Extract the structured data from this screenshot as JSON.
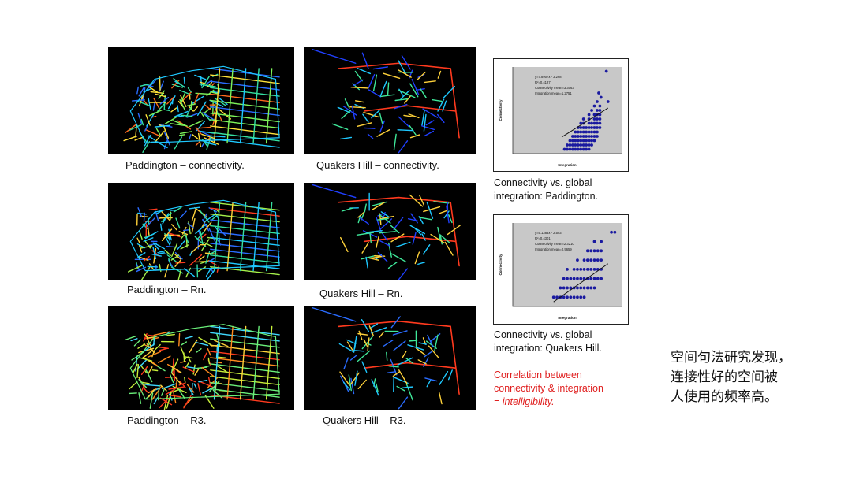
{
  "maps": [
    {
      "id": "pad-conn",
      "caption": "Paddington – connectivity.",
      "palette": [
        "#2a6cff",
        "#1ec8ff",
        "#35e0a0",
        "#7df35a",
        "#ffe23a",
        "#ff6a1e"
      ]
    },
    {
      "id": "qh-conn",
      "caption": "Quakers Hill – connectivity.",
      "palette": [
        "#2040ff",
        "#1ec8ff",
        "#3fe89a",
        "#ffd23a",
        "#ff3a1e"
      ]
    },
    {
      "id": "pad-rn",
      "caption": "Paddington – Rn.",
      "palette": [
        "#2a6cff",
        "#1ec8ff",
        "#35e0a0",
        "#a5f04a",
        "#ffd23a",
        "#ff3a1e"
      ]
    },
    {
      "id": "qh-rn",
      "caption": "Quakers Hill – Rn.",
      "palette": [
        "#2040ff",
        "#1ec8ff",
        "#3fe89a",
        "#ffd23a",
        "#ff3a1e"
      ]
    },
    {
      "id": "pad-r3",
      "caption": "Paddington – R3.",
      "palette": [
        "#40d8ff",
        "#6af07a",
        "#c8f03a",
        "#ffd23a",
        "#ff8a1e",
        "#ff3a1e"
      ]
    },
    {
      "id": "qh-r3",
      "caption": "Quakers Hill – R3.",
      "palette": [
        "#2a6cff",
        "#1ec8ff",
        "#3fe89a",
        "#ffd23a",
        "#ff3a1e"
      ]
    }
  ],
  "scatter_captions": {
    "paddington": [
      "Connectivity vs. global",
      "integration: Paddington."
    ],
    "quakers": [
      "Connectivity vs. global",
      "integration: Quakers Hill."
    ]
  },
  "correlation_note": [
    "Correlation between",
    "connectivity & integration",
    "= intelligibility."
  ],
  "side_note": [
    "空间句法研究发现，",
    "连接性好的空间被",
    "人使用的频率高。"
  ],
  "colors": {
    "point": "#1a1aa0",
    "plot_bg": "#c8c8c8",
    "red": "#e02020"
  },
  "chart_data": [
    {
      "type": "scatter",
      "title": "",
      "xlabel": "Integration",
      "ylabel": "Connectivity",
      "xlim": [
        0,
        2.0
      ],
      "ylim": [
        0,
        20
      ],
      "annotations": [
        "y=7.8907x - 3.268",
        "R²=0.4127",
        "Connectivity mean=3.3063",
        "Integration mean=1.2751"
      ],
      "trend": {
        "slope": 7.89,
        "intercept": -3.27,
        "x": [
          0.9,
          1.75
        ]
      },
      "points": [
        [
          0.95,
          1
        ],
        [
          1.0,
          1
        ],
        [
          1.05,
          1
        ],
        [
          1.1,
          1
        ],
        [
          1.15,
          1
        ],
        [
          1.2,
          1
        ],
        [
          1.25,
          1
        ],
        [
          1.3,
          1
        ],
        [
          1.35,
          1
        ],
        [
          1.4,
          1
        ],
        [
          1.0,
          2
        ],
        [
          1.05,
          2
        ],
        [
          1.1,
          2
        ],
        [
          1.15,
          2
        ],
        [
          1.2,
          2
        ],
        [
          1.25,
          2
        ],
        [
          1.3,
          2
        ],
        [
          1.35,
          2
        ],
        [
          1.4,
          2
        ],
        [
          1.45,
          2
        ],
        [
          1.05,
          3
        ],
        [
          1.1,
          3
        ],
        [
          1.15,
          3
        ],
        [
          1.2,
          3
        ],
        [
          1.25,
          3
        ],
        [
          1.3,
          3
        ],
        [
          1.35,
          3
        ],
        [
          1.4,
          3
        ],
        [
          1.45,
          3
        ],
        [
          1.5,
          3
        ],
        [
          1.1,
          4
        ],
        [
          1.15,
          4
        ],
        [
          1.2,
          4
        ],
        [
          1.25,
          4
        ],
        [
          1.3,
          4
        ],
        [
          1.35,
          4
        ],
        [
          1.4,
          4
        ],
        [
          1.45,
          4
        ],
        [
          1.5,
          4
        ],
        [
          1.55,
          4
        ],
        [
          1.15,
          5
        ],
        [
          1.2,
          5
        ],
        [
          1.25,
          5
        ],
        [
          1.3,
          5
        ],
        [
          1.35,
          5
        ],
        [
          1.4,
          5
        ],
        [
          1.45,
          5
        ],
        [
          1.5,
          5
        ],
        [
          1.55,
          5
        ],
        [
          1.2,
          6
        ],
        [
          1.25,
          6
        ],
        [
          1.3,
          6
        ],
        [
          1.35,
          6
        ],
        [
          1.4,
          6
        ],
        [
          1.45,
          6
        ],
        [
          1.5,
          6
        ],
        [
          1.55,
          6
        ],
        [
          1.6,
          6
        ],
        [
          1.25,
          7
        ],
        [
          1.3,
          7
        ],
        [
          1.4,
          7
        ],
        [
          1.45,
          7
        ],
        [
          1.5,
          7
        ],
        [
          1.55,
          7
        ],
        [
          1.6,
          7
        ],
        [
          1.3,
          8
        ],
        [
          1.4,
          8
        ],
        [
          1.5,
          8
        ],
        [
          1.55,
          8
        ],
        [
          1.6,
          8
        ],
        [
          1.4,
          9
        ],
        [
          1.5,
          9
        ],
        [
          1.55,
          9
        ],
        [
          1.6,
          9
        ],
        [
          1.45,
          10
        ],
        [
          1.55,
          10
        ],
        [
          1.6,
          10
        ],
        [
          1.5,
          11
        ],
        [
          1.6,
          11
        ],
        [
          1.55,
          12
        ],
        [
          1.62,
          13
        ],
        [
          1.58,
          14
        ],
        [
          1.75,
          12
        ],
        [
          1.72,
          19
        ]
      ]
    },
    {
      "type": "scatter",
      "title": "",
      "xlabel": "Integration",
      "ylabel": "Connectivity",
      "xlim": [
        0,
        1.6
      ],
      "ylim": [
        0,
        9
      ],
      "annotations": [
        "y=5.1383x - 2.593",
        "R²=0.4301",
        "Connectivity mean=2.3210",
        "Integration mean=0.9659"
      ],
      "trend": {
        "slope": 5.14,
        "intercept": -2.59,
        "x": [
          0.6,
          1.4
        ]
      },
      "points": [
        [
          0.6,
          1
        ],
        [
          0.65,
          1
        ],
        [
          0.7,
          1
        ],
        [
          0.75,
          1
        ],
        [
          0.8,
          1
        ],
        [
          0.85,
          1
        ],
        [
          0.9,
          1
        ],
        [
          0.95,
          1
        ],
        [
          1.0,
          1
        ],
        [
          1.05,
          1
        ],
        [
          0.7,
          2
        ],
        [
          0.75,
          2
        ],
        [
          0.8,
          2
        ],
        [
          0.85,
          2
        ],
        [
          0.9,
          2
        ],
        [
          0.95,
          2
        ],
        [
          1.0,
          2
        ],
        [
          1.05,
          2
        ],
        [
          1.1,
          2
        ],
        [
          1.15,
          2
        ],
        [
          1.2,
          2
        ],
        [
          0.75,
          3
        ],
        [
          0.8,
          3
        ],
        [
          0.85,
          3
        ],
        [
          0.9,
          3
        ],
        [
          0.95,
          3
        ],
        [
          1.0,
          3
        ],
        [
          1.05,
          3
        ],
        [
          1.1,
          3
        ],
        [
          1.15,
          3
        ],
        [
          1.2,
          3
        ],
        [
          1.25,
          3
        ],
        [
          1.3,
          3
        ],
        [
          0.8,
          4
        ],
        [
          0.9,
          4
        ],
        [
          0.95,
          4
        ],
        [
          1.0,
          4
        ],
        [
          1.05,
          4
        ],
        [
          1.1,
          4
        ],
        [
          1.15,
          4
        ],
        [
          1.2,
          4
        ],
        [
          1.25,
          4
        ],
        [
          1.3,
          4
        ],
        [
          0.95,
          5
        ],
        [
          1.05,
          5
        ],
        [
          1.1,
          5
        ],
        [
          1.15,
          5
        ],
        [
          1.2,
          5
        ],
        [
          1.25,
          5
        ],
        [
          1.3,
          5
        ],
        [
          1.1,
          6
        ],
        [
          1.15,
          6
        ],
        [
          1.2,
          6
        ],
        [
          1.25,
          6
        ],
        [
          1.3,
          6
        ],
        [
          1.2,
          7
        ],
        [
          1.3,
          7
        ],
        [
          1.45,
          8
        ],
        [
          1.5,
          8
        ]
      ]
    }
  ]
}
